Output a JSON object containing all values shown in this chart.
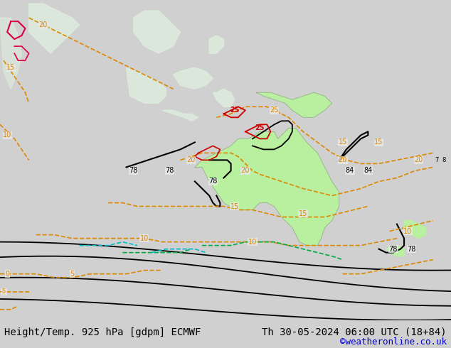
{
  "title_left": "Height/Temp. 925 hPa [gdpm] ECMWF",
  "title_right": "Th 30-05-2024 06:00 UTC (18+84)",
  "credit": "©weatheronline.co.uk",
  "bg_color": "#d0d0d0",
  "map_bg": "#c8c8c8",
  "land_color": "#e8e8e8",
  "green_fill": "#b8f0a0",
  "fig_width": 6.34,
  "fig_height": 4.9,
  "dpi": 100,
  "bottom_bar_color": "#f0f0f0",
  "title_fontsize": 10,
  "credit_fontsize": 9,
  "credit_color": "#0000cc"
}
